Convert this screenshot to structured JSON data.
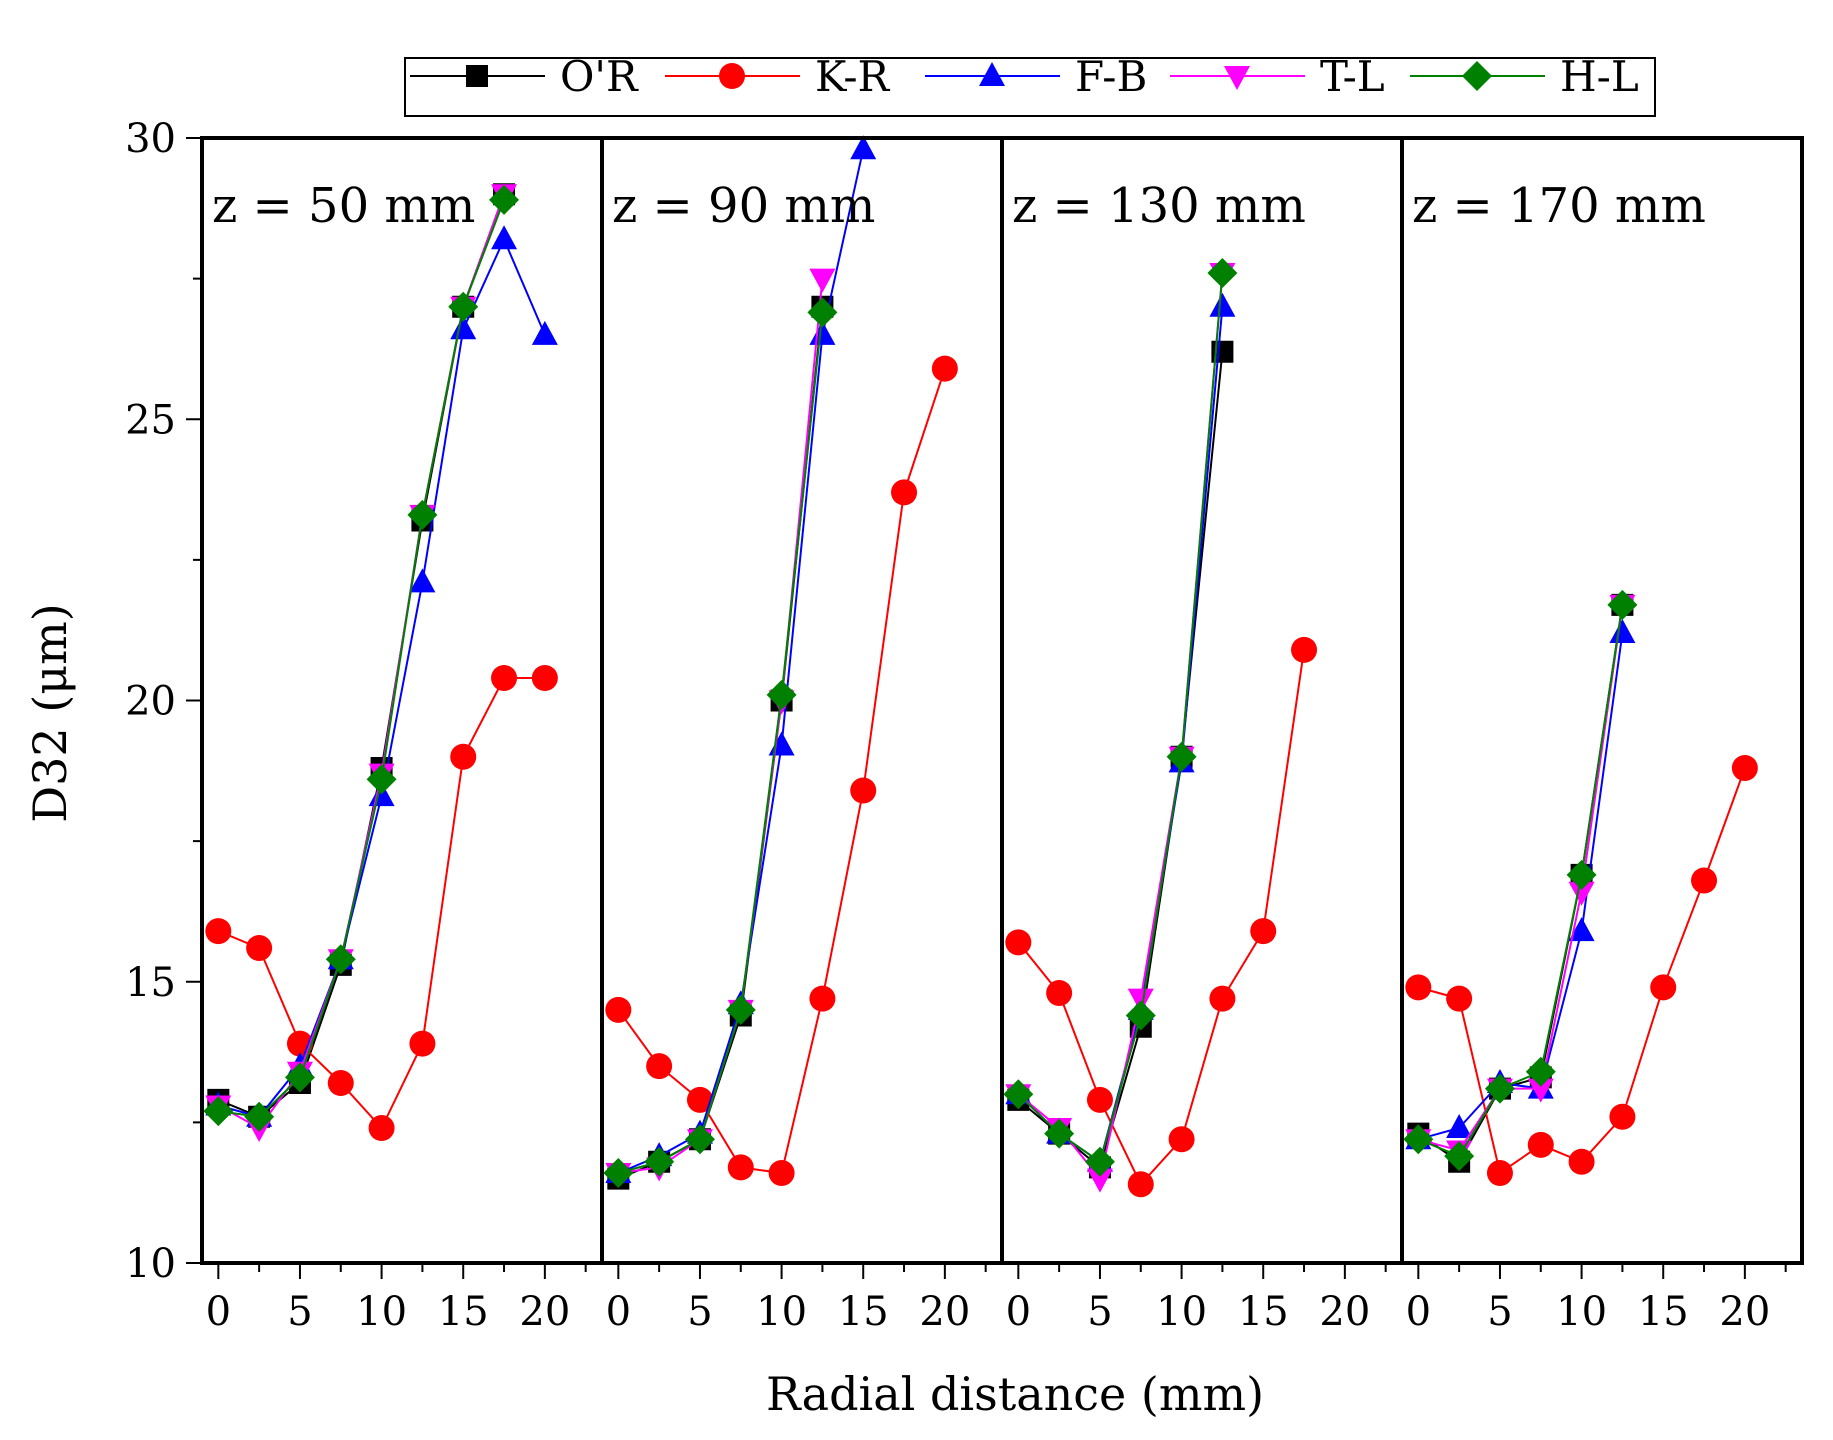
{
  "chart_data": {
    "type": "line",
    "xlabel": "Radial distance (mm)",
    "ylabel": "D32 (μm)",
    "ylim": [
      10,
      30
    ],
    "xlim": [
      -1,
      23.5
    ],
    "x_ticks": [
      0,
      5,
      10,
      15,
      20
    ],
    "y_ticks": [
      10,
      15,
      20,
      25,
      30
    ],
    "legend": {
      "placement": "top",
      "entries": [
        {
          "name": "O'R",
          "color": "#000000",
          "marker": "square"
        },
        {
          "name": "K-R",
          "color": "#ff0000",
          "marker": "circle"
        },
        {
          "name": "F-B",
          "color": "#0000ff",
          "marker": "triangle-up"
        },
        {
          "name": "T-L",
          "color": "#ff00ff",
          "marker": "triangle-down"
        },
        {
          "name": "H-L",
          "color": "#008000",
          "marker": "diamond"
        }
      ]
    },
    "panels": [
      {
        "label": "z = 50 mm",
        "series": [
          {
            "name": "O'R",
            "x": [
              0,
              2.5,
              5,
              7.5,
              10,
              12.5,
              15,
              17.5
            ],
            "values": [
              12.9,
              12.6,
              13.2,
              15.3,
              18.8,
              23.2,
              27.0,
              29.0
            ]
          },
          {
            "name": "K-R",
            "x": [
              0,
              2.5,
              5,
              7.5,
              10,
              12.5,
              15,
              17.5,
              20
            ],
            "values": [
              15.9,
              15.6,
              13.9,
              13.2,
              12.4,
              13.9,
              19.0,
              20.4,
              20.4
            ]
          },
          {
            "name": "F-B",
            "x": [
              0,
              2.5,
              5,
              7.5,
              10,
              12.5,
              15,
              17.5,
              20
            ],
            "values": [
              12.8,
              12.6,
              13.5,
              15.4,
              18.3,
              22.1,
              26.6,
              28.2,
              26.5
            ]
          },
          {
            "name": "T-L",
            "x": [
              0,
              2.5,
              5,
              7.5,
              10,
              12.5,
              15,
              17.5
            ],
            "values": [
              12.8,
              12.4,
              13.4,
              15.4,
              18.7,
              23.3,
              27.0,
              29.0
            ]
          },
          {
            "name": "H-L",
            "x": [
              0,
              2.5,
              5,
              7.5,
              10,
              12.5,
              15,
              17.5
            ],
            "values": [
              12.7,
              12.6,
              13.3,
              15.4,
              18.6,
              23.3,
              27.0,
              28.9
            ]
          }
        ]
      },
      {
        "label": "z = 90 mm",
        "series": [
          {
            "name": "O'R",
            "x": [
              0,
              2.5,
              5,
              7.5,
              10,
              12.5
            ],
            "values": [
              11.5,
              11.8,
              12.2,
              14.4,
              20.0,
              27.0
            ]
          },
          {
            "name": "K-R",
            "x": [
              0,
              2.5,
              5,
              7.5,
              10,
              12.5,
              15,
              17.5,
              20
            ],
            "values": [
              14.5,
              13.5,
              12.9,
              11.7,
              11.6,
              14.7,
              18.4,
              23.7,
              25.9
            ]
          },
          {
            "name": "F-B",
            "x": [
              0,
              2.5,
              5,
              7.5,
              10,
              12.5,
              15
            ],
            "values": [
              11.6,
              11.9,
              12.3,
              14.6,
              19.2,
              26.5,
              29.8
            ]
          },
          {
            "name": "T-L",
            "x": [
              0,
              2.5,
              5,
              7.5,
              10,
              12.5
            ],
            "values": [
              11.6,
              11.7,
              12.2,
              14.5,
              20.0,
              27.5
            ]
          },
          {
            "name": "H-L",
            "x": [
              0,
              2.5,
              5,
              7.5,
              10,
              12.5
            ],
            "values": [
              11.6,
              11.8,
              12.2,
              14.5,
              20.1,
              26.9
            ]
          }
        ]
      },
      {
        "label": "z = 130 mm",
        "series": [
          {
            "name": "O'R",
            "x": [
              0,
              2.5,
              5,
              7.5,
              10,
              12.5
            ],
            "values": [
              12.9,
              12.3,
              11.7,
              14.2,
              19.0,
              26.2
            ]
          },
          {
            "name": "K-R",
            "x": [
              0,
              2.5,
              5,
              7.5,
              10,
              12.5,
              15,
              17.5
            ],
            "values": [
              15.7,
              14.8,
              12.9,
              11.4,
              12.2,
              14.7,
              15.9,
              20.9
            ]
          },
          {
            "name": "F-B",
            "x": [
              0,
              2.5,
              5,
              7.5,
              10,
              12.5
            ],
            "values": [
              13.0,
              12.3,
              11.8,
              14.5,
              18.9,
              27.0
            ]
          },
          {
            "name": "T-L",
            "x": [
              0,
              2.5,
              5,
              7.5,
              10,
              12.5
            ],
            "values": [
              13.0,
              12.4,
              11.5,
              14.7,
              19.0,
              27.6
            ]
          },
          {
            "name": "H-L",
            "x": [
              0,
              2.5,
              5,
              7.5,
              10,
              12.5
            ],
            "values": [
              13.0,
              12.3,
              11.8,
              14.4,
              19.0,
              27.6
            ]
          }
        ]
      },
      {
        "label": "z = 170 mm",
        "series": [
          {
            "name": "O'R",
            "x": [
              0,
              2.5,
              5,
              7.5,
              10,
              12.5
            ],
            "values": [
              12.3,
              11.8,
              13.1,
              13.3,
              16.9,
              21.7
            ]
          },
          {
            "name": "K-R",
            "x": [
              0,
              2.5,
              5,
              7.5,
              10,
              12.5,
              15,
              17.5,
              20
            ],
            "values": [
              14.9,
              14.7,
              11.6,
              12.1,
              11.8,
              12.6,
              14.9,
              16.8,
              18.8
            ]
          },
          {
            "name": "F-B",
            "x": [
              0,
              2.5,
              5,
              7.5,
              10,
              12.5
            ],
            "values": [
              12.2,
              12.4,
              13.2,
              13.1,
              15.9,
              21.2
            ]
          },
          {
            "name": "T-L",
            "x": [
              0,
              2.5,
              5,
              7.5,
              10,
              12.5
            ],
            "values": [
              12.2,
              12.0,
              13.1,
              13.1,
              16.6,
              21.7
            ]
          },
          {
            "name": "H-L",
            "x": [
              0,
              2.5,
              5,
              7.5,
              10,
              12.5
            ],
            "values": [
              12.2,
              11.9,
              13.1,
              13.4,
              16.9,
              21.7
            ]
          }
        ]
      }
    ]
  }
}
